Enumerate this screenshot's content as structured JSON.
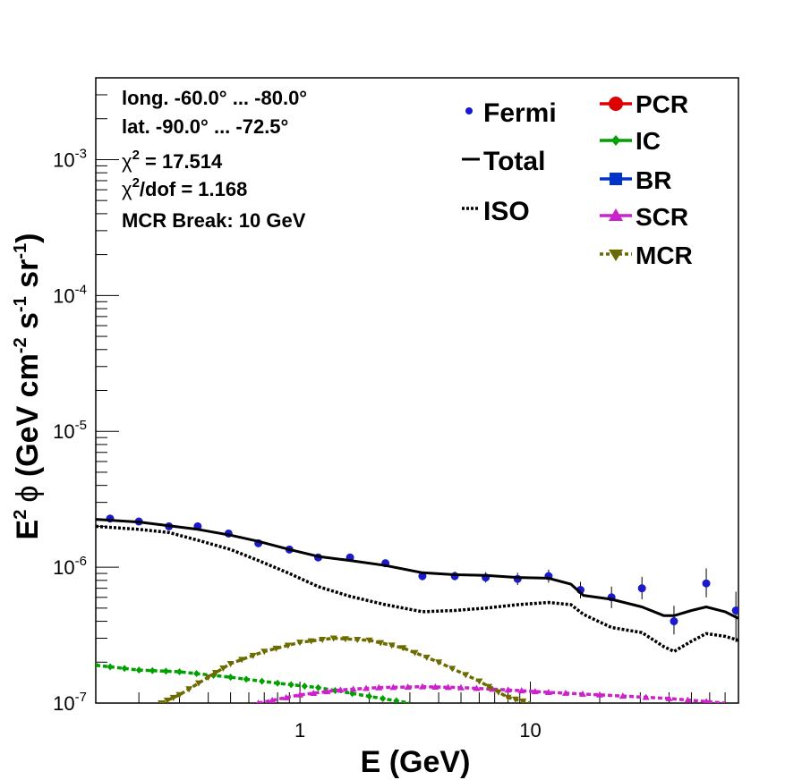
{
  "chart_data": {
    "type": "line",
    "xlabel": "E (GeV)",
    "ylabel_parts": {
      "e2": "E",
      "e2_exp": "2",
      "phi": "ϕ",
      "open": " (GeV cm",
      "cm_exp": "-2",
      "s": " s",
      "s_exp": "-1",
      "sr": " sr",
      "sr_exp": "-1",
      "close": ")"
    },
    "x_scale": "log",
    "y_scale": "log",
    "xlim": [
      0.13,
      80
    ],
    "ylim": [
      1e-07,
      0.004
    ],
    "x_ticks": [
      {
        "value": 1,
        "label": "1"
      },
      {
        "value": 10,
        "label": "10"
      }
    ],
    "y_ticks": [
      {
        "value": 1e-07,
        "base": "10",
        "exp": "-7"
      },
      {
        "value": 1e-06,
        "base": "10",
        "exp": "-6"
      },
      {
        "value": 1e-05,
        "base": "10",
        "exp": "-5"
      },
      {
        "value": 0.0001,
        "base": "10",
        "exp": "-4"
      },
      {
        "value": 0.001,
        "base": "10",
        "exp": "-3"
      }
    ],
    "info": {
      "longitude": "long. -60.0° ... -80.0°",
      "latitude": "lat. -90.0° ... -72.5°",
      "chi2": {
        "symbol": "χ",
        "exp": "2",
        "rest": " = 17.514"
      },
      "chi2dof": {
        "symbol": "χ",
        "exp": "2",
        "rest": "/dof = 1.168"
      },
      "break": "MCR Break: 10 GeV"
    },
    "legend": [
      {
        "label": "Fermi",
        "color": "#1a1acc",
        "kind": "point"
      },
      {
        "label": "Total",
        "color": "#000000",
        "kind": "solid"
      },
      {
        "label": "ISO",
        "color": "#000000",
        "kind": "dotted"
      },
      {
        "label": "PCR",
        "color": "#dd0000",
        "kind": "circle"
      },
      {
        "label": "IC",
        "color": "#00a000",
        "kind": "diamond"
      },
      {
        "label": "BR",
        "color": "#0033cc",
        "kind": "square"
      },
      {
        "label": "SCR",
        "color": "#cc22cc",
        "kind": "triangle-up"
      },
      {
        "label": "MCR",
        "color": "#6b6b00",
        "kind": "triangle-down"
      }
    ],
    "series": [
      {
        "name": "Fermi",
        "kind": "points",
        "color": "#1a1acc",
        "points": [
          {
            "x": 0.15,
            "y": 2.28e-06,
            "err_lo": 2.18e-06,
            "err_hi": 2.38e-06
          },
          {
            "x": 0.2,
            "y": 2.17e-06,
            "err_lo": 2.07e-06,
            "err_hi": 2.27e-06
          },
          {
            "x": 0.27,
            "y": 2e-06,
            "err_lo": 1.91e-06,
            "err_hi": 2.09e-06
          },
          {
            "x": 0.36,
            "y": 2e-06,
            "err_lo": 1.91e-06,
            "err_hi": 2.09e-06
          },
          {
            "x": 0.49,
            "y": 1.77e-06,
            "err_lo": 1.69e-06,
            "err_hi": 1.85e-06
          },
          {
            "x": 0.66,
            "y": 1.5e-06,
            "err_lo": 1.43e-06,
            "err_hi": 1.57e-06
          },
          {
            "x": 0.9,
            "y": 1.35e-06,
            "err_lo": 1.28e-06,
            "err_hi": 1.42e-06
          },
          {
            "x": 1.2,
            "y": 1.18e-06,
            "err_lo": 1.11e-06,
            "err_hi": 1.25e-06
          },
          {
            "x": 1.65,
            "y": 1.18e-06,
            "err_lo": 1.11e-06,
            "err_hi": 1.25e-06
          },
          {
            "x": 2.35,
            "y": 1.07e-06,
            "err_lo": 1e-06,
            "err_hi": 1.14e-06
          },
          {
            "x": 3.4,
            "y": 8.6e-07,
            "err_lo": 8e-07,
            "err_hi": 9.2e-07
          },
          {
            "x": 4.7,
            "y": 8.6e-07,
            "err_lo": 8e-07,
            "err_hi": 9.3e-07
          },
          {
            "x": 6.4,
            "y": 8.4e-07,
            "err_lo": 7.7e-07,
            "err_hi": 9.2e-07
          },
          {
            "x": 8.8,
            "y": 8.2e-07,
            "err_lo": 7.4e-07,
            "err_hi": 9.1e-07
          },
          {
            "x": 12.0,
            "y": 8.6e-07,
            "err_lo": 7.7e-07,
            "err_hi": 9.6e-07
          },
          {
            "x": 16.5,
            "y": 6.8e-07,
            "err_lo": 5.9e-07,
            "err_hi": 7.8e-07
          },
          {
            "x": 22.5,
            "y": 6e-07,
            "err_lo": 5e-07,
            "err_hi": 7.2e-07
          },
          {
            "x": 30.5,
            "y": 7e-07,
            "err_lo": 5.8e-07,
            "err_hi": 8.5e-07
          },
          {
            "x": 42.0,
            "y": 4e-07,
            "err_lo": 3.2e-07,
            "err_hi": 5.2e-07
          },
          {
            "x": 58.0,
            "y": 7.6e-07,
            "err_lo": 6e-07,
            "err_hi": 9.8e-07
          },
          {
            "x": 78.0,
            "y": 4.8e-07,
            "err_lo": 2.8e-07,
            "err_hi": 6.6e-07
          }
        ]
      },
      {
        "name": "Total",
        "kind": "solid",
        "color": "#000000",
        "points": [
          [
            0.13,
            2.25e-06
          ],
          [
            0.2,
            2.15e-06
          ],
          [
            0.27,
            2.02e-06
          ],
          [
            0.36,
            1.9e-06
          ],
          [
            0.5,
            1.72e-06
          ],
          [
            0.66,
            1.55e-06
          ],
          [
            0.9,
            1.35e-06
          ],
          [
            1.2,
            1.2e-06
          ],
          [
            1.65,
            1.12e-06
          ],
          [
            2.35,
            1.03e-06
          ],
          [
            3.4,
            9.1e-07
          ],
          [
            4.7,
            8.8e-07
          ],
          [
            6.4,
            8.7e-07
          ],
          [
            8.8,
            8.4e-07
          ],
          [
            12.0,
            8.3e-07
          ],
          [
            15.0,
            7.5e-07
          ],
          [
            17.0,
            6.2e-07
          ],
          [
            22.5,
            5.8e-07
          ],
          [
            30.5,
            5.1e-07
          ],
          [
            38.0,
            4.4e-07
          ],
          [
            42.0,
            4.4e-07
          ],
          [
            50.0,
            4.8e-07
          ],
          [
            58.0,
            5.1e-07
          ],
          [
            70.0,
            4.7e-07
          ],
          [
            80.0,
            4.2e-07
          ]
        ]
      },
      {
        "name": "ISO",
        "kind": "dotted",
        "color": "#000000",
        "points": [
          [
            0.13,
            2e-06
          ],
          [
            0.2,
            1.9e-06
          ],
          [
            0.27,
            1.8e-06
          ],
          [
            0.36,
            1.58e-06
          ],
          [
            0.5,
            1.35e-06
          ],
          [
            0.66,
            1.12e-06
          ],
          [
            0.9,
            9e-07
          ],
          [
            1.2,
            7.2e-07
          ],
          [
            1.65,
            6.1e-07
          ],
          [
            2.35,
            5.3e-07
          ],
          [
            3.4,
            4.7e-07
          ],
          [
            4.7,
            4.8e-07
          ],
          [
            6.4,
            5e-07
          ],
          [
            8.8,
            5.3e-07
          ],
          [
            12.0,
            5.5e-07
          ],
          [
            15.0,
            5.3e-07
          ],
          [
            17.0,
            4.5e-07
          ],
          [
            22.5,
            3.6e-07
          ],
          [
            30.5,
            3.3e-07
          ],
          [
            38.0,
            2.6e-07
          ],
          [
            42.0,
            2.4e-07
          ],
          [
            50.0,
            2.85e-07
          ],
          [
            58.0,
            3.25e-07
          ],
          [
            70.0,
            3.1e-07
          ],
          [
            80.0,
            2.9e-07
          ]
        ]
      },
      {
        "name": "IC",
        "kind": "dashed",
        "color": "#00a000",
        "marker": "diamond",
        "points": [
          [
            0.13,
            1.9e-07
          ],
          [
            0.2,
            1.75e-07
          ],
          [
            0.3,
            1.7e-07
          ],
          [
            0.5,
            1.55e-07
          ],
          [
            0.8,
            1.4e-07
          ],
          [
            1.2,
            1.3e-07
          ],
          [
            2.0,
            1.12e-07
          ],
          [
            3.0,
            1e-07
          ]
        ]
      },
      {
        "name": "SCR",
        "kind": "dashed",
        "color": "#cc22cc",
        "marker": "triangle-up",
        "points": [
          [
            0.66,
            1e-07
          ],
          [
            1.0,
            1.15e-07
          ],
          [
            1.5,
            1.25e-07
          ],
          [
            2.2,
            1.3e-07
          ],
          [
            3.4,
            1.32e-07
          ],
          [
            5.0,
            1.3e-07
          ],
          [
            8.0,
            1.25e-07
          ],
          [
            12.0,
            1.2e-07
          ],
          [
            20.0,
            1.15e-07
          ],
          [
            40.0,
            1.08e-07
          ],
          [
            70.0,
            1e-07
          ]
        ]
      },
      {
        "name": "MCR",
        "kind": "dashed",
        "color": "#6b6b00",
        "marker": "triangle-down",
        "points": [
          [
            0.25,
            1e-07
          ],
          [
            0.3,
            1.15e-07
          ],
          [
            0.4,
            1.55e-07
          ],
          [
            0.5,
            1.95e-07
          ],
          [
            0.7,
            2.4e-07
          ],
          [
            1.0,
            2.8e-07
          ],
          [
            1.4,
            3e-07
          ],
          [
            2.0,
            2.9e-07
          ],
          [
            2.8,
            2.55e-07
          ],
          [
            4.0,
            2e-07
          ],
          [
            6.0,
            1.45e-07
          ],
          [
            8.0,
            1.1e-07
          ],
          [
            10.0,
            1e-07
          ]
        ]
      }
    ]
  }
}
